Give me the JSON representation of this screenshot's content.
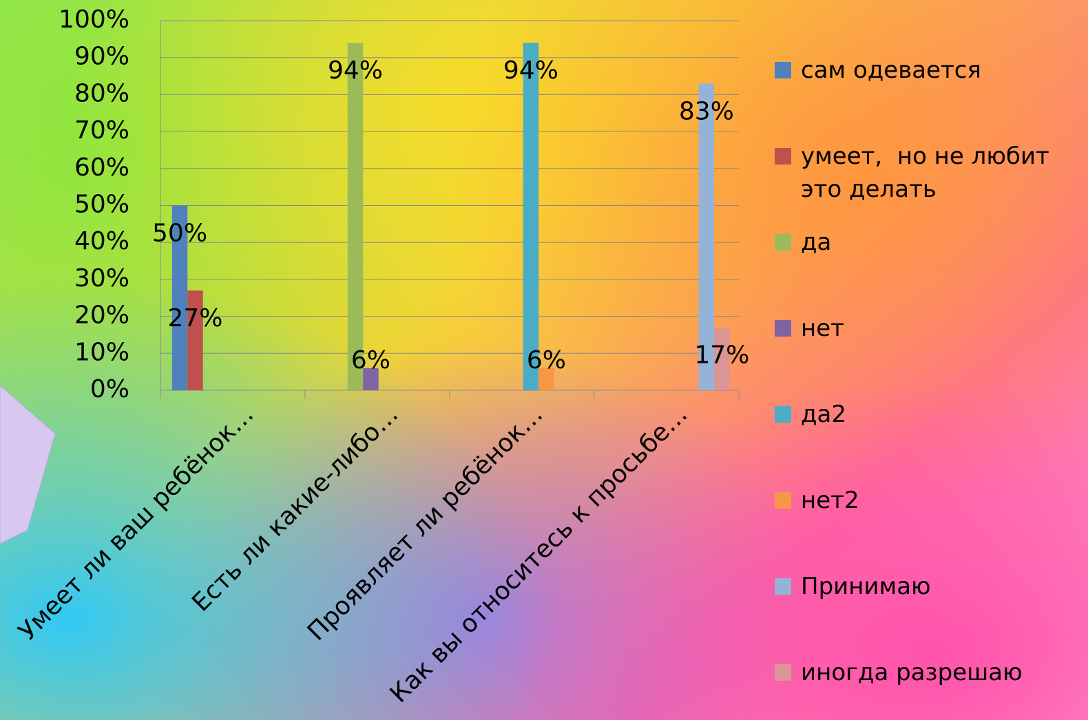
{
  "chart_data": {
    "type": "bar",
    "categories": [
      "Умеет ли ваш ребёнок…",
      "Есть ли какие-либо…",
      "Проявляет ли ребёнок…",
      "Как вы относитесь к просьбе…"
    ],
    "series": [
      {
        "name": "сам одевается",
        "color": "#4f81bd",
        "values": [
          50,
          null,
          null,
          null
        ],
        "value_labels": [
          "50%",
          null,
          null,
          null
        ]
      },
      {
        "name": "умеет,  но не любит это делать",
        "color": "#c0504d",
        "values": [
          27,
          null,
          null,
          null
        ],
        "value_labels": [
          "27%",
          null,
          null,
          null
        ]
      },
      {
        "name": "да",
        "color": "#9bbb59",
        "values": [
          null,
          94,
          null,
          null
        ],
        "value_labels": [
          null,
          "94%",
          null,
          null
        ]
      },
      {
        "name": "нет",
        "color": "#8064a2",
        "values": [
          null,
          6,
          null,
          null
        ],
        "value_labels": [
          null,
          "6%",
          null,
          null
        ]
      },
      {
        "name": "да2",
        "color": "#4bacc6",
        "values": [
          null,
          null,
          94,
          null
        ],
        "value_labels": [
          null,
          null,
          "94%",
          null
        ]
      },
      {
        "name": "нет2",
        "color": "#f79646",
        "values": [
          null,
          null,
          6,
          null
        ],
        "value_labels": [
          null,
          null,
          "6%",
          null
        ]
      },
      {
        "name": "Принимаю",
        "color": "#95b3d7",
        "values": [
          null,
          null,
          null,
          83
        ],
        "value_labels": [
          null,
          null,
          null,
          "83%"
        ]
      },
      {
        "name": "иногда разрешаю",
        "color": "#d99694",
        "values": [
          null,
          null,
          null,
          17
        ],
        "value_labels": [
          null,
          null,
          null,
          "17%"
        ]
      }
    ],
    "ylim": [
      0,
      100
    ],
    "yticks": [
      {
        "value": 0,
        "label": "0%"
      },
      {
        "value": 10,
        "label": "10%"
      },
      {
        "value": 20,
        "label": "20%"
      },
      {
        "value": 30,
        "label": "30%"
      },
      {
        "value": 40,
        "label": "40%"
      },
      {
        "value": 50,
        "label": "50%"
      },
      {
        "value": 60,
        "label": "60%"
      },
      {
        "value": 70,
        "label": "70%"
      },
      {
        "value": 80,
        "label": "80%"
      },
      {
        "value": 90,
        "label": "90%"
      },
      {
        "value": 100,
        "label": "100%"
      }
    ],
    "grid": true,
    "legend": "right"
  }
}
